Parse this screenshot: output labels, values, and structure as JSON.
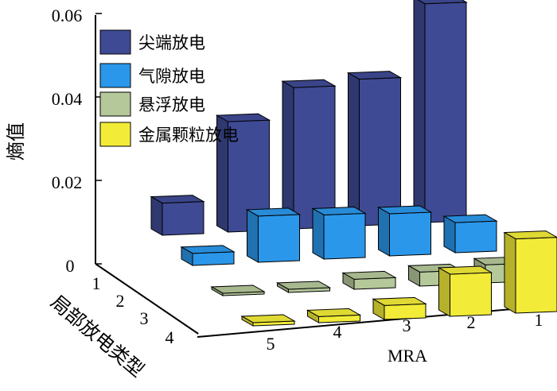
{
  "chart_data": {
    "type": "bar3d",
    "ylabel": "熵值",
    "mra_label": "MRA",
    "type_axis_label": "局部放电类型",
    "zlim": [
      0,
      0.06
    ],
    "z_ticks": [
      "0",
      "0.02",
      "0.04",
      "0.06"
    ],
    "mra_categories": [
      "1",
      "2",
      "3",
      "4",
      "5"
    ],
    "type_categories": [
      "1",
      "2",
      "3",
      "4"
    ],
    "legend_placement": "top-left",
    "series": [
      {
        "name": "尖端放电",
        "color": "#3f4a94",
        "values": [
          0.0545,
          0.0365,
          0.0352,
          0.0275,
          0.008
        ]
      },
      {
        "name": "气隙放电",
        "color": "#2b97ea",
        "values": [
          0.0075,
          0.0105,
          0.011,
          0.0115,
          0.003
        ]
      },
      {
        "name": "悬浮放电",
        "color": "#b5c89a",
        "values": [
          0.0045,
          0.0035,
          0.0025,
          0.0008,
          0.0006
        ]
      },
      {
        "name": "金属颗粒放电",
        "color": "#f2ec38",
        "values": [
          0.0185,
          0.0105,
          0.0035,
          0.0015,
          0.0008
        ]
      }
    ]
  }
}
